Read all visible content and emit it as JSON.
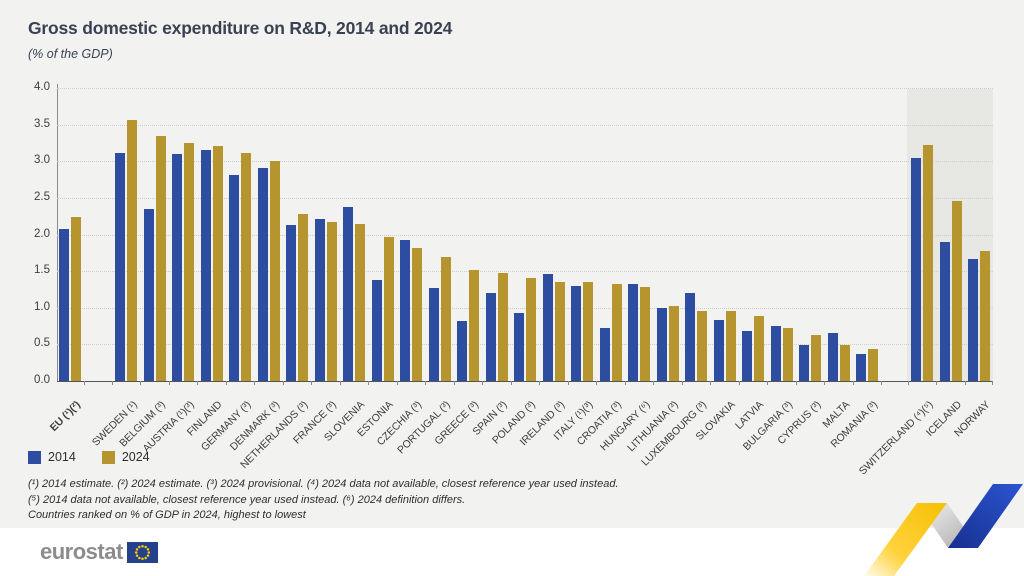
{
  "header": {
    "title": "Gross domestic expenditure on R&D, 2014 and 2024",
    "subtitle": "(% of the GDP)"
  },
  "legend": {
    "items": [
      {
        "label": "2014",
        "color": "#2d4da0"
      },
      {
        "label": "2024",
        "color": "#b6952e"
      }
    ]
  },
  "footnotes": {
    "line1": "(¹) 2014 estimate. (²) 2024 estimate. (³) 2024 provisional. (⁴) 2024 data not available, closest reference year used instead.",
    "line2": "(⁵) 2014 data not available, closest reference year used instead. (⁶) 2024 definition differs.",
    "line3": "Countries ranked on % of GDP in 2024, highest to lowest"
  },
  "footer": {
    "logo_text": "eurostat"
  },
  "colors": {
    "bar2014": "#2d4da0",
    "bar2024": "#b6952e",
    "background": "#f2f2f0",
    "highlight_band": "#e7e7e4",
    "grid": "#cfcfc7",
    "axis": "#555555",
    "text": "#3d3d3d",
    "title": "#3a4252",
    "logo_gray": "#8c8c8c",
    "flag_blue": "#25418c",
    "star_yellow": "#ffcc00"
  },
  "chart_data": {
    "type": "bar",
    "title": "Gross domestic expenditure on R&D, 2014 and 2024",
    "ylabel": "(% of the GDP)",
    "ylim": [
      0,
      4
    ],
    "ytick_step": 0.5,
    "yticks": [
      "0.0",
      "0.5",
      "1.0",
      "1.5",
      "2.0",
      "2.5",
      "3.0",
      "3.5",
      "4.0"
    ],
    "grid": "dotted-horizontal",
    "legend_position": "bottom-left",
    "highlight_region": "gray band behind non-EU countries (Switzerland, Iceland, Norway)",
    "series": [
      {
        "name": "2014"
      },
      {
        "name": "2024"
      }
    ],
    "groups": [
      {
        "label": "EU (¹)(²)",
        "section": "eu",
        "bold": true,
        "values": [
          2.08,
          2.24
        ]
      },
      {
        "label": "SWEDEN (¹)",
        "section": "members",
        "values": [
          3.11,
          3.57
        ]
      },
      {
        "label": "BELGIUM (³)",
        "section": "members",
        "values": [
          2.35,
          3.35
        ]
      },
      {
        "label": "AUSTRIA (¹)(³)",
        "section": "members",
        "values": [
          3.1,
          3.25
        ]
      },
      {
        "label": "FINLAND",
        "section": "members",
        "values": [
          3.15,
          3.21
        ]
      },
      {
        "label": "GERMANY (³)",
        "section": "members",
        "values": [
          2.81,
          3.11
        ]
      },
      {
        "label": "DENMARK (³)",
        "section": "members",
        "values": [
          2.91,
          3.0
        ]
      },
      {
        "label": "NETHERLANDS (³)",
        "section": "members",
        "values": [
          2.13,
          2.28
        ]
      },
      {
        "label": "FRANCE (³)",
        "section": "members",
        "values": [
          2.21,
          2.17
        ]
      },
      {
        "label": "SLOVENIA",
        "section": "members",
        "values": [
          2.38,
          2.14
        ]
      },
      {
        "label": "ESTONIA",
        "section": "members",
        "values": [
          1.38,
          1.97
        ]
      },
      {
        "label": "CZECHIA (³)",
        "section": "members",
        "values": [
          1.93,
          1.81
        ]
      },
      {
        "label": "PORTUGAL (³)",
        "section": "members",
        "values": [
          1.27,
          1.7
        ]
      },
      {
        "label": "GREECE (³)",
        "section": "members",
        "values": [
          0.82,
          1.51
        ]
      },
      {
        "label": "SPAIN (³)",
        "section": "members",
        "values": [
          1.2,
          1.47
        ]
      },
      {
        "label": "POLAND (³)",
        "section": "members",
        "values": [
          0.93,
          1.4
        ]
      },
      {
        "label": "IRELAND (³)",
        "section": "members",
        "values": [
          1.46,
          1.35
        ]
      },
      {
        "label": "ITALY (¹)(³)",
        "section": "members",
        "values": [
          1.3,
          1.35
        ]
      },
      {
        "label": "CROATIA (³)",
        "section": "members",
        "values": [
          0.73,
          1.32
        ]
      },
      {
        "label": "HUNGARY (⁶)",
        "section": "members",
        "values": [
          1.32,
          1.28
        ]
      },
      {
        "label": "LITHUANIA (³)",
        "section": "members",
        "values": [
          1.0,
          1.02
        ]
      },
      {
        "label": "LUXEMBOURG (³)",
        "section": "members",
        "values": [
          1.2,
          0.96
        ]
      },
      {
        "label": "SLOVAKIA",
        "section": "members",
        "values": [
          0.84,
          0.96
        ]
      },
      {
        "label": "LATVIA",
        "section": "members",
        "values": [
          0.68,
          0.89
        ]
      },
      {
        "label": "BULGARIA (³)",
        "section": "members",
        "values": [
          0.75,
          0.72
        ]
      },
      {
        "label": "CYPRUS (³)",
        "section": "members",
        "values": [
          0.49,
          0.63
        ]
      },
      {
        "label": "MALTA",
        "section": "members",
        "values": [
          0.66,
          0.49
        ]
      },
      {
        "label": "ROMANIA (³)",
        "section": "members",
        "values": [
          0.37,
          0.44
        ]
      },
      {
        "label": "SWITZERLAND (⁴)(⁵)",
        "section": "noneu",
        "values": [
          3.04,
          3.22
        ]
      },
      {
        "label": "ICELAND",
        "section": "noneu",
        "values": [
          1.9,
          2.46
        ]
      },
      {
        "label": "NORWAY",
        "section": "noneu",
        "values": [
          1.67,
          1.78
        ]
      }
    ]
  }
}
